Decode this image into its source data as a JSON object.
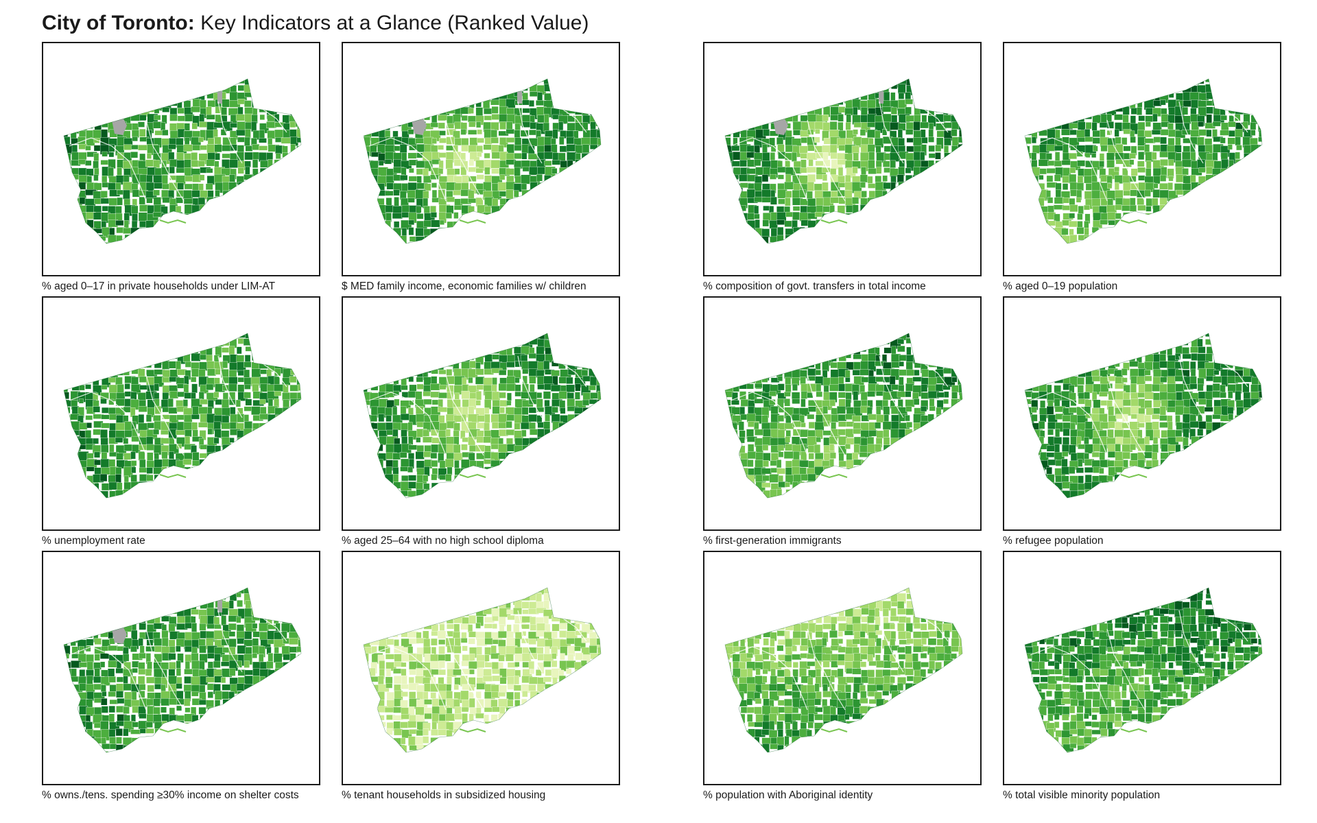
{
  "title": {
    "bold": "City of Toronto:",
    "light": "Key Indicators at a Glance (Ranked Value)"
  },
  "palette": [
    "#e8f5bd",
    "#cdeb94",
    "#a3d96a",
    "#78c550",
    "#4cae3e",
    "#2c9532",
    "#137a2a",
    "#05591e"
  ],
  "no_data_color": "#a6a6a6",
  "boundary_color": "#ffffff",
  "maps": [
    {
      "caption": "% aged 0–17 in private households under LIM-AT",
      "pattern": "mixed-dark",
      "no_data": true
    },
    {
      "caption": "$ MED family income, economic families w/ children",
      "pattern": "light-center",
      "no_data": true
    },
    {
      "caption": "% composition of govt. transfers in total income",
      "pattern": "light-center-strong",
      "no_data": true
    },
    {
      "caption": "% aged 0–19 population",
      "pattern": "light-south",
      "no_data": false
    },
    {
      "caption": "% unemployment rate",
      "pattern": "mixed-dark",
      "no_data": false
    },
    {
      "caption": "% aged 25–64 with no high school diploma",
      "pattern": "light-center",
      "no_data": false
    },
    {
      "caption": "% first-generation immigrants",
      "pattern": "light-south",
      "no_data": false
    },
    {
      "caption": "% refugee population",
      "pattern": "light-center",
      "no_data": false
    },
    {
      "caption": "% owns./tens. spending ≥30% income on shelter costs",
      "pattern": "mixed-dark",
      "no_data": true
    },
    {
      "caption": "% tenant households in subsidized housing",
      "pattern": "mostly-light",
      "no_data": false
    },
    {
      "caption": "% population with Aboriginal identity",
      "pattern": "light-north",
      "no_data": false
    },
    {
      "caption": "% total visible minority population",
      "pattern": "dark-north",
      "no_data": false
    }
  ]
}
